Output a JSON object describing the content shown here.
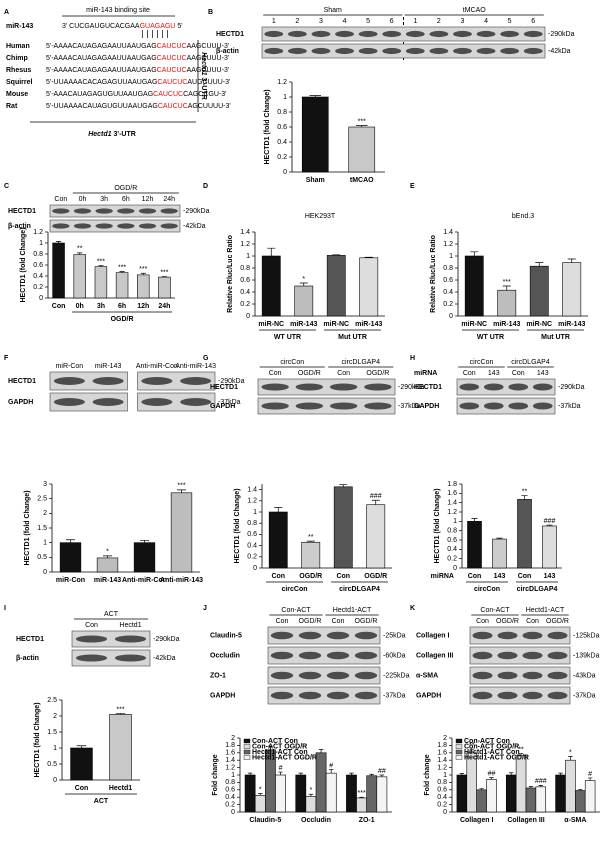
{
  "panels": {
    "A": {
      "letter": "A",
      "binding_site": "miR-143 binding site",
      "mir_name": "miR-143",
      "mir_seq": {
        "pre": "3' CUCGAUGUCACGAA",
        "red": "GUAGAGU",
        "post": "5'"
      },
      "species": [
        {
          "name": "Human",
          "pre": "5'-AAAACAUAGAGAAUUAAUGAG",
          "red": "CAUCUC",
          "post": "AAGCUUU-3'"
        },
        {
          "name": "Chimp",
          "pre": "5'-AAAACAUAGAGAAUUAAUGAG",
          "red": "CAUCUC",
          "post": "AAGCUUU-3'"
        },
        {
          "name": "Rhesus",
          "pre": "5'-AAAACAUAGAGAAUUAAUGAG",
          "red": "CAUCUC",
          "post": "AAGCUUU-3'"
        },
        {
          "name": "Squirrel",
          "pre": "5'-UUAAAACACAGAGUUAAUGAG",
          "red": "CAUCUC",
          "post": "AUGCUUU-3'"
        },
        {
          "name": "Mouse",
          "pre": "5'-AAACAUAGAGUGUUAAUGAG",
          "red": "CAUCUC",
          "post": "CAGCCGU-3'"
        },
        {
          "name": "Rat",
          "pre": "5'-UUAAAACAUAGUGUUAAUGAG",
          "red": "CAUCUC",
          "post": "AGCUUUU-3'"
        }
      ],
      "side_label": {
        "gene": "Hectd1",
        "suffix": "3'-UTR"
      },
      "bottom_label": {
        "gene": "Hectd1",
        "suffix": "3'-UTR"
      }
    },
    "B": {
      "letter": "B",
      "groups": [
        {
          "name": "Sham",
          "lanes": [
            "1",
            "2",
            "3",
            "4",
            "5",
            "6"
          ]
        },
        {
          "name": "tMCAO",
          "lanes": [
            "1",
            "2",
            "3",
            "4",
            "5",
            "6"
          ]
        }
      ],
      "rows": [
        {
          "name": "HECTD1",
          "size": "-290kDa"
        },
        {
          "name": "β-actin",
          "size": "-42kDa"
        }
      ]
    },
    "C": {
      "letter": "C",
      "groups": [
        {
          "lanes": [
            "Con"
          ]
        },
        {
          "name": "OGD/R",
          "lanes": [
            "0h",
            "3h",
            "6h",
            "12h",
            "24h"
          ]
        }
      ],
      "rows": [
        {
          "name": "HECTD1",
          "size": "-290kDa"
        },
        {
          "name": "β-actin",
          "size": "-42kDa"
        }
      ]
    },
    "D": {
      "letter": "D"
    },
    "E": {
      "letter": "E"
    },
    "F": {
      "letter": "F",
      "separate_boxes": true,
      "groups": [
        {
          "lanes": [
            "miR-Con",
            "miR-143"
          ]
        },
        {
          "lanes": [
            "Anti-miR-Con",
            "Anti-miR-143"
          ]
        }
      ],
      "rows": [
        {
          "name": "HECTD1",
          "size": "-290kDa"
        },
        {
          "name": "GAPDH",
          "size": "-37kDa"
        }
      ]
    },
    "G": {
      "letter": "G",
      "groups": [
        {
          "name": "circCon",
          "lanes": [
            "Con",
            "OGD/R"
          ]
        },
        {
          "name": "circDLGAP4",
          "lanes": [
            "Con",
            "OGD/R"
          ]
        }
      ],
      "rows": [
        {
          "name": "HECTD1",
          "size": "-290kDa"
        },
        {
          "name": "GAPDH",
          "size": "-37kDa"
        }
      ]
    },
    "H": {
      "letter": "H",
      "lane_label": "miRNA",
      "groups": [
        {
          "name": "circCon",
          "lanes": [
            "Con",
            "143"
          ]
        },
        {
          "name": "circDLGAP4",
          "lanes": [
            "Con",
            "143"
          ]
        }
      ],
      "rows": [
        {
          "name": "HECTD1",
          "size": "-290kDa"
        },
        {
          "name": "GAPDH",
          "size": "-37kDa"
        }
      ]
    },
    "I": {
      "letter": "I",
      "groups": [
        {
          "name": "ACT",
          "lanes": [
            "Con",
            "Hectd1"
          ]
        }
      ],
      "rows": [
        {
          "name": "HECTD1",
          "size": "-290kDa"
        },
        {
          "name": "β-actin",
          "size": "-42kDa"
        }
      ]
    },
    "J": {
      "letter": "J",
      "groups": [
        {
          "name": "Con-ACT",
          "lanes": [
            "Con",
            "OGD/R"
          ]
        },
        {
          "name": "Hectd1-ACT",
          "lanes": [
            "Con",
            "OGD/R"
          ]
        }
      ],
      "rows": [
        {
          "name": "Claudin-5",
          "size": "-25kDa"
        },
        {
          "name": "Occludin",
          "size": "-60kDa"
        },
        {
          "name": "ZO-1",
          "size": "-225kDa"
        },
        {
          "name": "GAPDH",
          "size": "-37kDa"
        }
      ]
    },
    "K": {
      "letter": "K",
      "groups": [
        {
          "name": "Con-ACT",
          "lanes": [
            "Con",
            "OGD/R"
          ]
        },
        {
          "name": "Hectd1-ACT",
          "lanes": [
            "Con",
            "OGD/R"
          ]
        }
      ],
      "rows": [
        {
          "name": "Collagen I",
          "size": "-125kDa"
        },
        {
          "name": "Collagen III",
          "size": "-139kDa"
        },
        {
          "name": "α-SMA",
          "size": "-43kDa"
        },
        {
          "name": "GAPDH",
          "size": "-37kDa"
        }
      ]
    }
  },
  "chart_data": [
    {
      "type": "bar",
      "ylabel": "HECTD1 (fold Change)",
      "categories": [
        "Sham",
        "tMCAO"
      ],
      "values": [
        1.0,
        0.6
      ],
      "errors": [
        0.02,
        0.02
      ],
      "annotations": [
        null,
        "***"
      ],
      "colors": [
        "#111111",
        "#c8c8c8"
      ],
      "ylim": [
        0,
        1.2
      ],
      "yticks": [
        0,
        0.2,
        0.4,
        0.6,
        0.8,
        1,
        1.2
      ]
    },
    {
      "type": "bar",
      "ylabel": "HECTD1 (fold Change)",
      "categories": [
        "Con",
        "0h",
        "3h",
        "6h",
        "12h",
        "24h"
      ],
      "xlabel": "OGD/R",
      "values": [
        1.0,
        0.79,
        0.57,
        0.46,
        0.42,
        0.38
      ],
      "errors": [
        0.03,
        0.03,
        0.02,
        0.02,
        0.03,
        0.01
      ],
      "annotations": [
        null,
        "**",
        "***",
        "***",
        "***",
        "***"
      ],
      "colors": [
        "#111111",
        "#c8c8c8",
        "#c8c8c8",
        "#c8c8c8",
        "#c8c8c8",
        "#c8c8c8"
      ],
      "ylim": [
        0,
        1.2
      ],
      "yticks": [
        0,
        0.2,
        0.4,
        0.6,
        0.8,
        1,
        1.2
      ]
    },
    {
      "type": "bar",
      "title": "HEK293T",
      "ylabel": "Relative Rluc/Luc Ratio",
      "categories": [
        "miR-NC",
        "miR-143",
        "miR-NC",
        "miR-143"
      ],
      "groups": [
        "WT UTR",
        "Mut UTR"
      ],
      "values": [
        1.0,
        0.5,
        1.01,
        0.97
      ],
      "errors": [
        0.13,
        0.05,
        0.01,
        0.01
      ],
      "annotations": [
        null,
        "*",
        null,
        null
      ],
      "colors": [
        "#111111",
        "#bdbdbd",
        "#555555",
        "#dddddd"
      ],
      "ylim": [
        0,
        1.4
      ],
      "yticks": [
        0,
        0.2,
        0.4,
        0.6,
        0.8,
        1,
        1.2,
        1.4
      ]
    },
    {
      "type": "bar",
      "title": "bEnd.3",
      "ylabel": "Relative Rluc/Luc Ratio",
      "categories": [
        "miR-NC",
        "miR-143",
        "miR-NC",
        "miR-143"
      ],
      "groups": [
        "WT UTR",
        "Mut UTR"
      ],
      "values": [
        1.0,
        0.43,
        0.83,
        0.89
      ],
      "errors": [
        0.07,
        0.07,
        0.06,
        0.06
      ],
      "annotations": [
        null,
        "***",
        null,
        null
      ],
      "colors": [
        "#111111",
        "#bdbdbd",
        "#555555",
        "#dddddd"
      ],
      "ylim": [
        0,
        1.4
      ],
      "yticks": [
        0,
        0.2,
        0.4,
        0.6,
        0.8,
        1,
        1.2,
        1.4
      ]
    },
    {
      "type": "bar",
      "ylabel": "HECTD1 (fold Change)",
      "categories": [
        "miR-Con",
        "miR-143",
        "Anti-miR-Con",
        "Anti-miR-143"
      ],
      "values": [
        1.0,
        0.48,
        1.0,
        2.7
      ],
      "errors": [
        0.1,
        0.07,
        0.08,
        0.1
      ],
      "annotations": [
        null,
        "*",
        null,
        "***"
      ],
      "colors": [
        "#111111",
        "#bdbdbd",
        "#111111",
        "#bdbdbd"
      ],
      "ylim": [
        0,
        3
      ],
      "yticks": [
        0,
        0.5,
        1,
        1.5,
        2,
        2.5,
        3
      ]
    },
    {
      "type": "bar",
      "ylabel": "HECTD1 (fold Change)",
      "categories": [
        "Con",
        "OGD/R",
        "Con",
        "OGD/R"
      ],
      "groups": [
        "circCon",
        "circDLGAP4"
      ],
      "values": [
        1.0,
        0.46,
        1.45,
        1.13
      ],
      "errors": [
        0.08,
        0.02,
        0.04,
        0.08
      ],
      "annotations": [
        null,
        "**",
        null,
        "###"
      ],
      "colors": [
        "#111111",
        "#cccccc",
        "#555555",
        "#dddddd"
      ],
      "ylim": [
        0,
        1.5
      ],
      "yticks": [
        0,
        0.2,
        0.4,
        0.6,
        0.8,
        1,
        1.2,
        1.4
      ]
    },
    {
      "type": "bar",
      "ylabel": "HECTD1 (fold Change)",
      "xrow": "miRNA",
      "categories": [
        "Con",
        "143",
        "Con",
        "143"
      ],
      "groups": [
        "circCon",
        "circDLGAP4"
      ],
      "values": [
        1.0,
        0.62,
        1.47,
        0.9
      ],
      "errors": [
        0.06,
        0.02,
        0.08,
        0.02
      ],
      "annotations": [
        null,
        null,
        "**",
        "###"
      ],
      "colors": [
        "#111111",
        "#cccccc",
        "#555555",
        "#dddddd"
      ],
      "ylim": [
        0,
        1.8
      ],
      "yticks": [
        0,
        0.2,
        0.4,
        0.6,
        0.8,
        1,
        1.2,
        1.4,
        1.6,
        1.8
      ]
    },
    {
      "type": "bar",
      "ylabel": "HECTD1 (fold Change)",
      "categories": [
        "Con",
        "Hectd1"
      ],
      "xlabel": "ACT",
      "values": [
        1.0,
        2.05
      ],
      "errors": [
        0.07,
        0.03
      ],
      "annotations": [
        null,
        "***"
      ],
      "colors": [
        "#111111",
        "#c8c8c8"
      ],
      "ylim": [
        0,
        2.5
      ],
      "yticks": [
        0,
        0.5,
        1,
        1.5,
        2,
        2.5
      ]
    },
    {
      "type": "bar",
      "ylabel": "Fold change",
      "categories": [
        "Claudin-5",
        "Occludin",
        "ZO-1"
      ],
      "legend": "upper left",
      "series": [
        {
          "name": "Con-ACT Con",
          "color": "#111111",
          "values": [
            1.0,
            1.0,
            1.0
          ],
          "errors": [
            0.05,
            0.05,
            0.05
          ]
        },
        {
          "name": "Con-ACT OGD/R",
          "color": "#dddddd",
          "values": [
            0.45,
            0.42,
            0.38
          ],
          "errors": [
            0.05,
            0.06,
            0.02
          ],
          "annotations": [
            "*",
            "*",
            "***"
          ]
        },
        {
          "name": "Hectd1-ACT Con",
          "color": "#666666",
          "values": [
            1.68,
            1.6,
            0.98
          ],
          "errors": [
            0.1,
            0.09,
            0.04
          ]
        },
        {
          "name": "Hectd1-ACT OGD/R",
          "color": "#f4f4f4",
          "values": [
            1.0,
            1.05,
            0.95
          ],
          "errors": [
            0.08,
            0.1,
            0.05
          ],
          "annotations": [
            "#",
            "#",
            "##"
          ]
        }
      ],
      "ylim": [
        0,
        2
      ],
      "yticks": [
        0,
        0.2,
        0.4,
        0.6,
        0.8,
        1,
        1.2,
        1.4,
        1.6,
        1.8,
        2
      ]
    },
    {
      "type": "bar",
      "ylabel": "Fold change",
      "categories": [
        "Collagen I",
        "Collagen III",
        "α-SMA"
      ],
      "legend": "upper left",
      "series": [
        {
          "name": "Con-ACT Con",
          "color": "#111111",
          "values": [
            1.0,
            1.0,
            1.0
          ],
          "errors": [
            0.04,
            0.06,
            0.05
          ]
        },
        {
          "name": "Con-ACT OGD/R",
          "color": "#dddddd",
          "values": [
            1.6,
            1.52,
            1.4
          ],
          "errors": [
            0.1,
            0.06,
            0.1
          ],
          "annotations": [
            "**",
            "**",
            "*"
          ]
        },
        {
          "name": "Hectd1-ACT Con",
          "color": "#666666",
          "values": [
            0.6,
            0.65,
            0.58
          ],
          "errors": [
            0.03,
            0.04,
            0.03
          ]
        },
        {
          "name": "Hectd1-ACT OGD/R",
          "color": "#f4f4f4",
          "values": [
            0.88,
            0.68,
            0.85
          ],
          "errors": [
            0.05,
            0.04,
            0.07
          ],
          "annotations": [
            "##",
            "###",
            "#"
          ]
        }
      ],
      "ylim": [
        0,
        2
      ],
      "yticks": [
        0,
        0.2,
        0.4,
        0.6,
        0.8,
        1,
        1.2,
        1.4,
        1.6,
        1.8,
        2
      ]
    }
  ]
}
